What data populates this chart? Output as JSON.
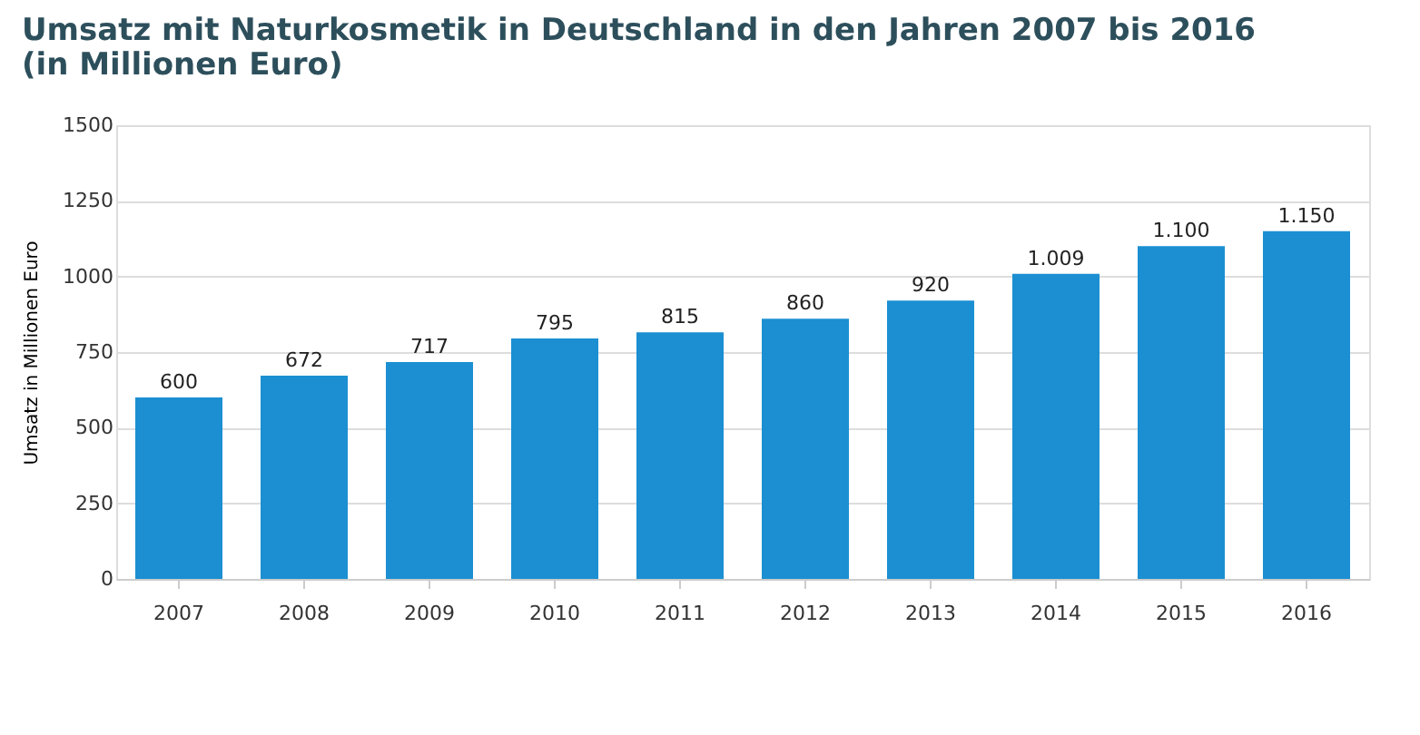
{
  "chart_data": {
    "type": "bar",
    "title": "Umsatz mit Naturkosmetik in Deutschland in den Jahren 2007 bis 2016\n(in Millionen Euro)",
    "ylabel": "Umsatz in Millionen Euro",
    "categories": [
      "2007",
      "2008",
      "2009",
      "2010",
      "2011",
      "2012",
      "2013",
      "2014",
      "2015",
      "2016"
    ],
    "values": [
      600,
      672,
      717,
      795,
      815,
      860,
      920,
      1009,
      1100,
      1150
    ],
    "value_labels": [
      "600",
      "672",
      "717",
      "795",
      "815",
      "860",
      "920",
      "1.009",
      "1.100",
      "1.150"
    ],
    "color": "#1b8fd2",
    "ylim": [
      0,
      1500
    ],
    "yticks": [
      0,
      250,
      500,
      750,
      1000,
      1250,
      1500
    ],
    "grid": "y"
  }
}
